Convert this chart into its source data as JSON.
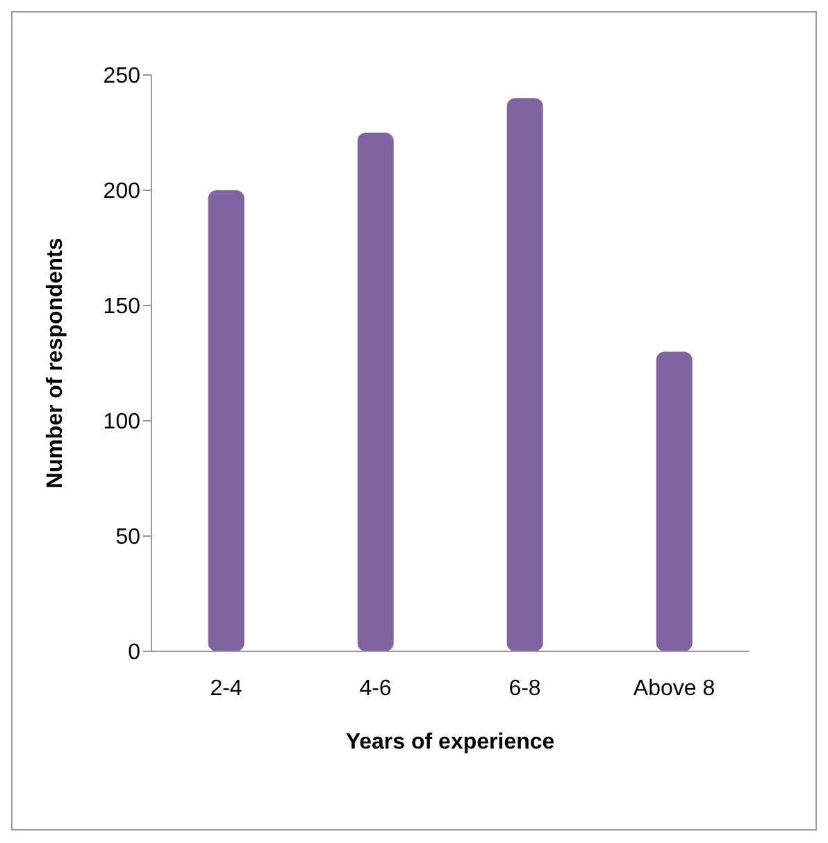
{
  "chart_data": {
    "type": "bar",
    "xlabel": "Years of experience",
    "ylabel": "Number of respondents",
    "categories": [
      "2-4",
      "4-6",
      "6-8",
      "Above 8"
    ],
    "values": [
      200,
      225,
      240,
      130
    ],
    "color": "#8064a2",
    "ylim": [
      0,
      250
    ],
    "yticks": [
      0,
      50,
      100,
      150,
      200,
      250
    ],
    "grid": false
  }
}
